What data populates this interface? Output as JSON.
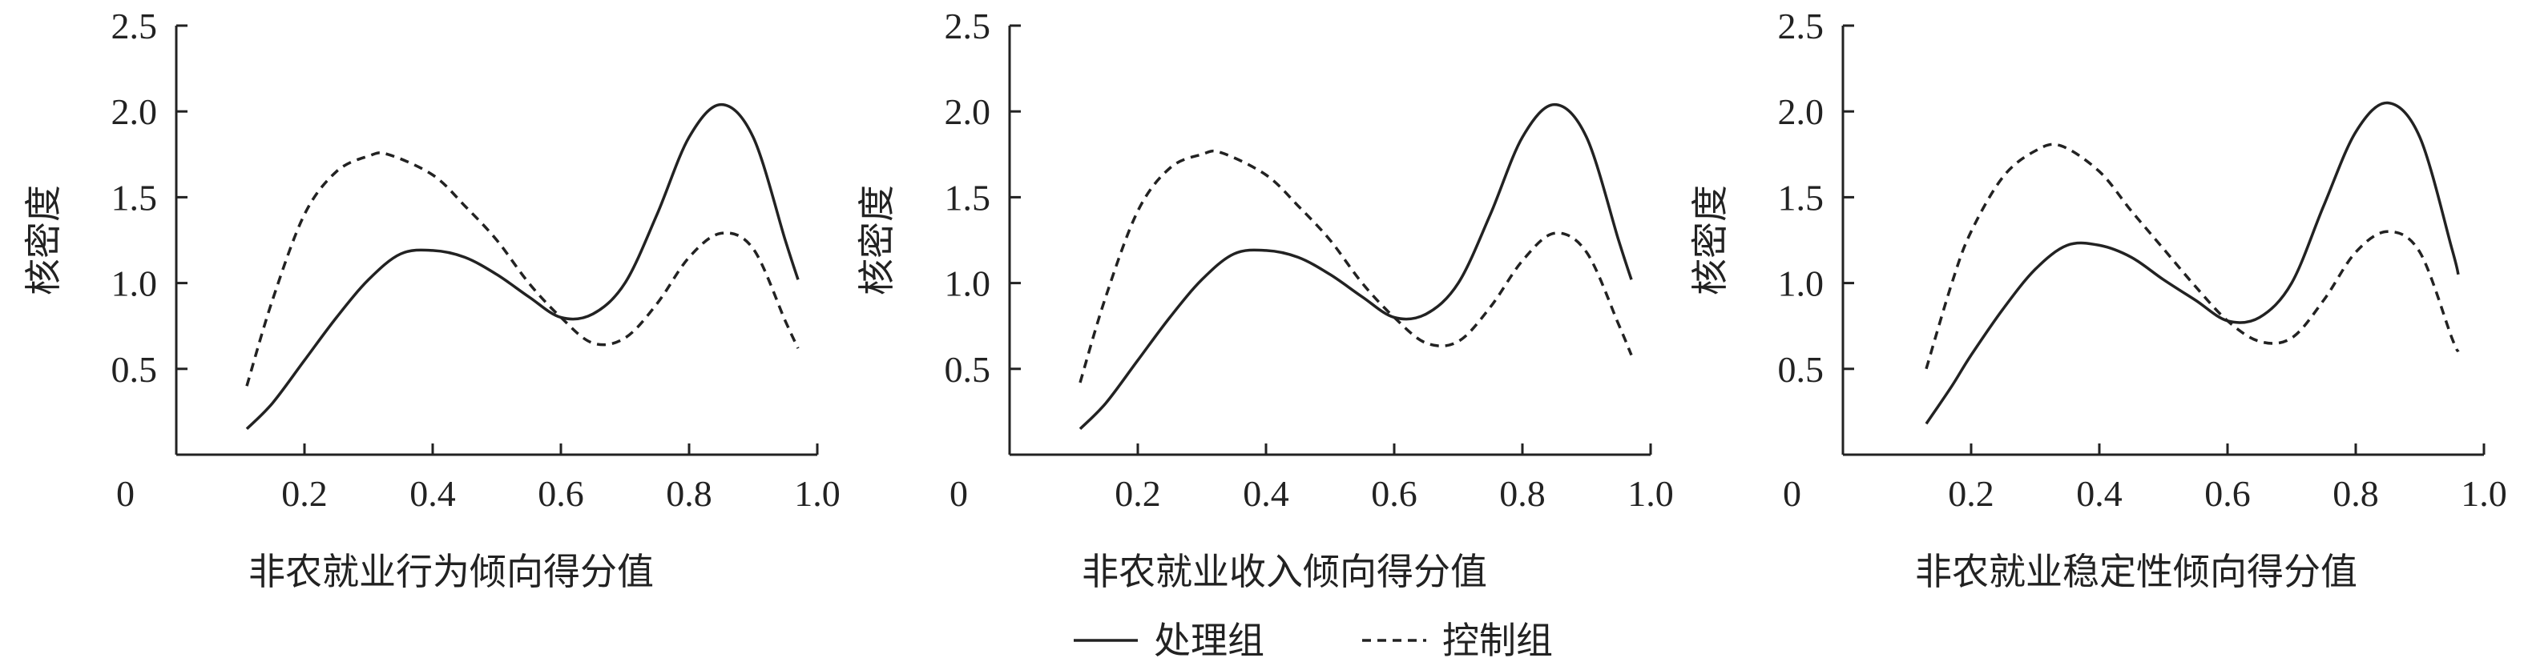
{
  "legend": {
    "placement": "bottom-center",
    "items": [
      {
        "label": "处理组",
        "style": "solid"
      },
      {
        "label": "控制组",
        "style": "dashed"
      }
    ]
  },
  "chart_data": [
    {
      "type": "line",
      "xlabel": "非农就业行为倾向得分值",
      "ylabel": "核密度",
      "xlim": [
        0,
        1.0
      ],
      "ylim": [
        0,
        2.5
      ],
      "xticks": [
        "0.2",
        "0.4",
        "0.6",
        "0.8",
        "1.0"
      ],
      "yticks": [
        "0.5",
        "1.0",
        "1.5",
        "2.0",
        "2.5"
      ],
      "origin_label": "0",
      "grid": false,
      "series": [
        {
          "name": "处理组",
          "style": "solid",
          "x": [
            0.11,
            0.15,
            0.2,
            0.25,
            0.3,
            0.35,
            0.4,
            0.45,
            0.5,
            0.55,
            0.6,
            0.65,
            0.7,
            0.75,
            0.8,
            0.85,
            0.9,
            0.95,
            0.97
          ],
          "y": [
            0.15,
            0.3,
            0.55,
            0.8,
            1.02,
            1.17,
            1.19,
            1.15,
            1.05,
            0.92,
            0.8,
            0.82,
            1.0,
            1.4,
            1.85,
            2.04,
            1.85,
            1.25,
            1.02
          ]
        },
        {
          "name": "控制组",
          "style": "dashed",
          "x": [
            0.11,
            0.15,
            0.2,
            0.25,
            0.3,
            0.33,
            0.4,
            0.45,
            0.5,
            0.55,
            0.6,
            0.65,
            0.7,
            0.75,
            0.8,
            0.85,
            0.9,
            0.95,
            0.97
          ],
          "y": [
            0.4,
            0.9,
            1.4,
            1.65,
            1.74,
            1.75,
            1.63,
            1.45,
            1.25,
            1.0,
            0.8,
            0.65,
            0.68,
            0.88,
            1.15,
            1.29,
            1.2,
            0.78,
            0.62
          ]
        }
      ]
    },
    {
      "type": "line",
      "xlabel": "非农就业收入倾向得分值",
      "ylabel": "核密度",
      "xlim": [
        0,
        1.0
      ],
      "ylim": [
        0,
        2.5
      ],
      "xticks": [
        "0.2",
        "0.4",
        "0.6",
        "0.8",
        "1.0"
      ],
      "yticks": [
        "0.5",
        "1.0",
        "1.5",
        "2.0",
        "2.5"
      ],
      "origin_label": "0",
      "grid": false,
      "series": [
        {
          "name": "处理组",
          "style": "solid",
          "x": [
            0.11,
            0.15,
            0.2,
            0.25,
            0.3,
            0.35,
            0.4,
            0.45,
            0.5,
            0.55,
            0.6,
            0.65,
            0.7,
            0.75,
            0.8,
            0.85,
            0.9,
            0.95,
            0.97
          ],
          "y": [
            0.15,
            0.3,
            0.55,
            0.8,
            1.02,
            1.17,
            1.19,
            1.15,
            1.05,
            0.92,
            0.8,
            0.82,
            1.0,
            1.4,
            1.85,
            2.04,
            1.85,
            1.25,
            1.02
          ]
        },
        {
          "name": "控制组",
          "style": "dashed",
          "x": [
            0.11,
            0.15,
            0.2,
            0.25,
            0.3,
            0.33,
            0.4,
            0.45,
            0.5,
            0.55,
            0.6,
            0.65,
            0.7,
            0.75,
            0.8,
            0.85,
            0.9,
            0.95,
            0.97
          ],
          "y": [
            0.42,
            0.92,
            1.42,
            1.67,
            1.75,
            1.76,
            1.63,
            1.45,
            1.25,
            1.0,
            0.8,
            0.65,
            0.66,
            0.86,
            1.13,
            1.29,
            1.18,
            0.76,
            0.58
          ]
        }
      ]
    },
    {
      "type": "line",
      "xlabel": "非农就业稳定性倾向得分值",
      "ylabel": "核密度",
      "xlim": [
        0,
        1.0
      ],
      "ylim": [
        0,
        2.5
      ],
      "xticks": [
        "0.2",
        "0.4",
        "0.6",
        "0.8",
        "1.0"
      ],
      "yticks": [
        "0.5",
        "1.0",
        "1.5",
        "2.0",
        "2.5"
      ],
      "origin_label": "0",
      "grid": false,
      "series": [
        {
          "name": "处理组",
          "style": "solid",
          "x": [
            0.13,
            0.17,
            0.2,
            0.25,
            0.3,
            0.35,
            0.4,
            0.45,
            0.5,
            0.55,
            0.6,
            0.65,
            0.7,
            0.75,
            0.8,
            0.85,
            0.9,
            0.95,
            0.96
          ],
          "y": [
            0.18,
            0.4,
            0.58,
            0.85,
            1.08,
            1.22,
            1.22,
            1.15,
            1.02,
            0.9,
            0.78,
            0.8,
            1.0,
            1.45,
            1.88,
            2.05,
            1.85,
            1.2,
            1.05
          ]
        },
        {
          "name": "控制组",
          "style": "dashed",
          "x": [
            0.13,
            0.17,
            0.2,
            0.25,
            0.3,
            0.34,
            0.4,
            0.45,
            0.5,
            0.55,
            0.6,
            0.65,
            0.7,
            0.75,
            0.8,
            0.85,
            0.9,
            0.95,
            0.96
          ],
          "y": [
            0.5,
            1.0,
            1.3,
            1.62,
            1.77,
            1.8,
            1.65,
            1.42,
            1.2,
            0.98,
            0.78,
            0.66,
            0.68,
            0.9,
            1.18,
            1.3,
            1.18,
            0.68,
            0.6
          ]
        }
      ]
    }
  ]
}
